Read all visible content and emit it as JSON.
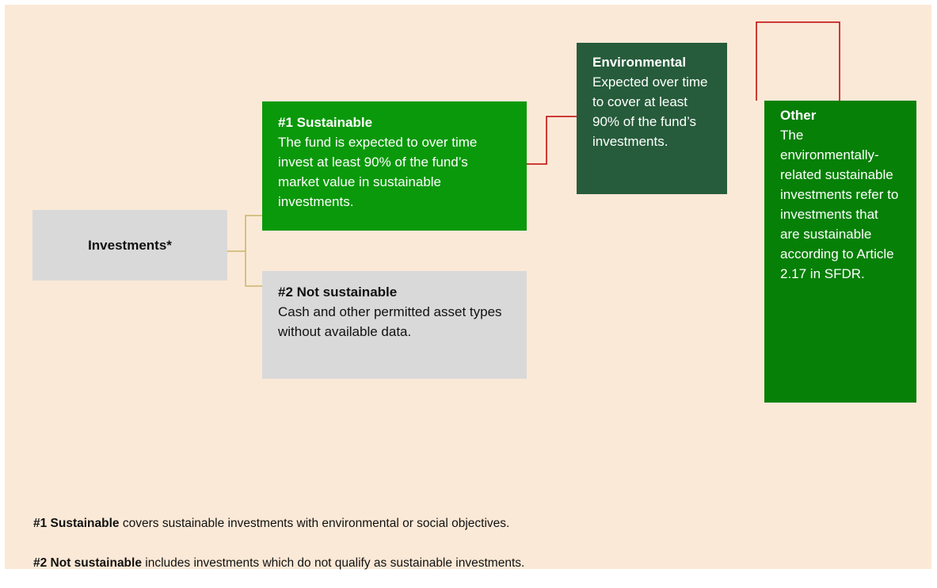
{
  "nodes": [
    {
      "title": "Investments*"
    },
    {
      "title": "#1 Sustainable",
      "text": "The fund is expected to over time invest at least 90% of the fund’s market value in sustainable investments."
    },
    {
      "title": "#2 Not sustainable",
      "text": "Cash and other permitted asset types without available data."
    },
    {
      "title": "Environmental",
      "text": "Expected over time to cover at least 90% of the fund’s investments."
    },
    {
      "title": "Other",
      "text": "The environmentally-related sustainable investments refer to investments that are sustainable according to Article 2.17 in SFDR."
    }
  ],
  "notes": [
    {
      "bold": "#1 Sustainable",
      "text": "covers sustainable investments with environmental or social objectives."
    },
    {
      "bold": "#2 Not sustainable",
      "text": "includes investments which do not qualify as sustainable investments."
    }
  ]
}
